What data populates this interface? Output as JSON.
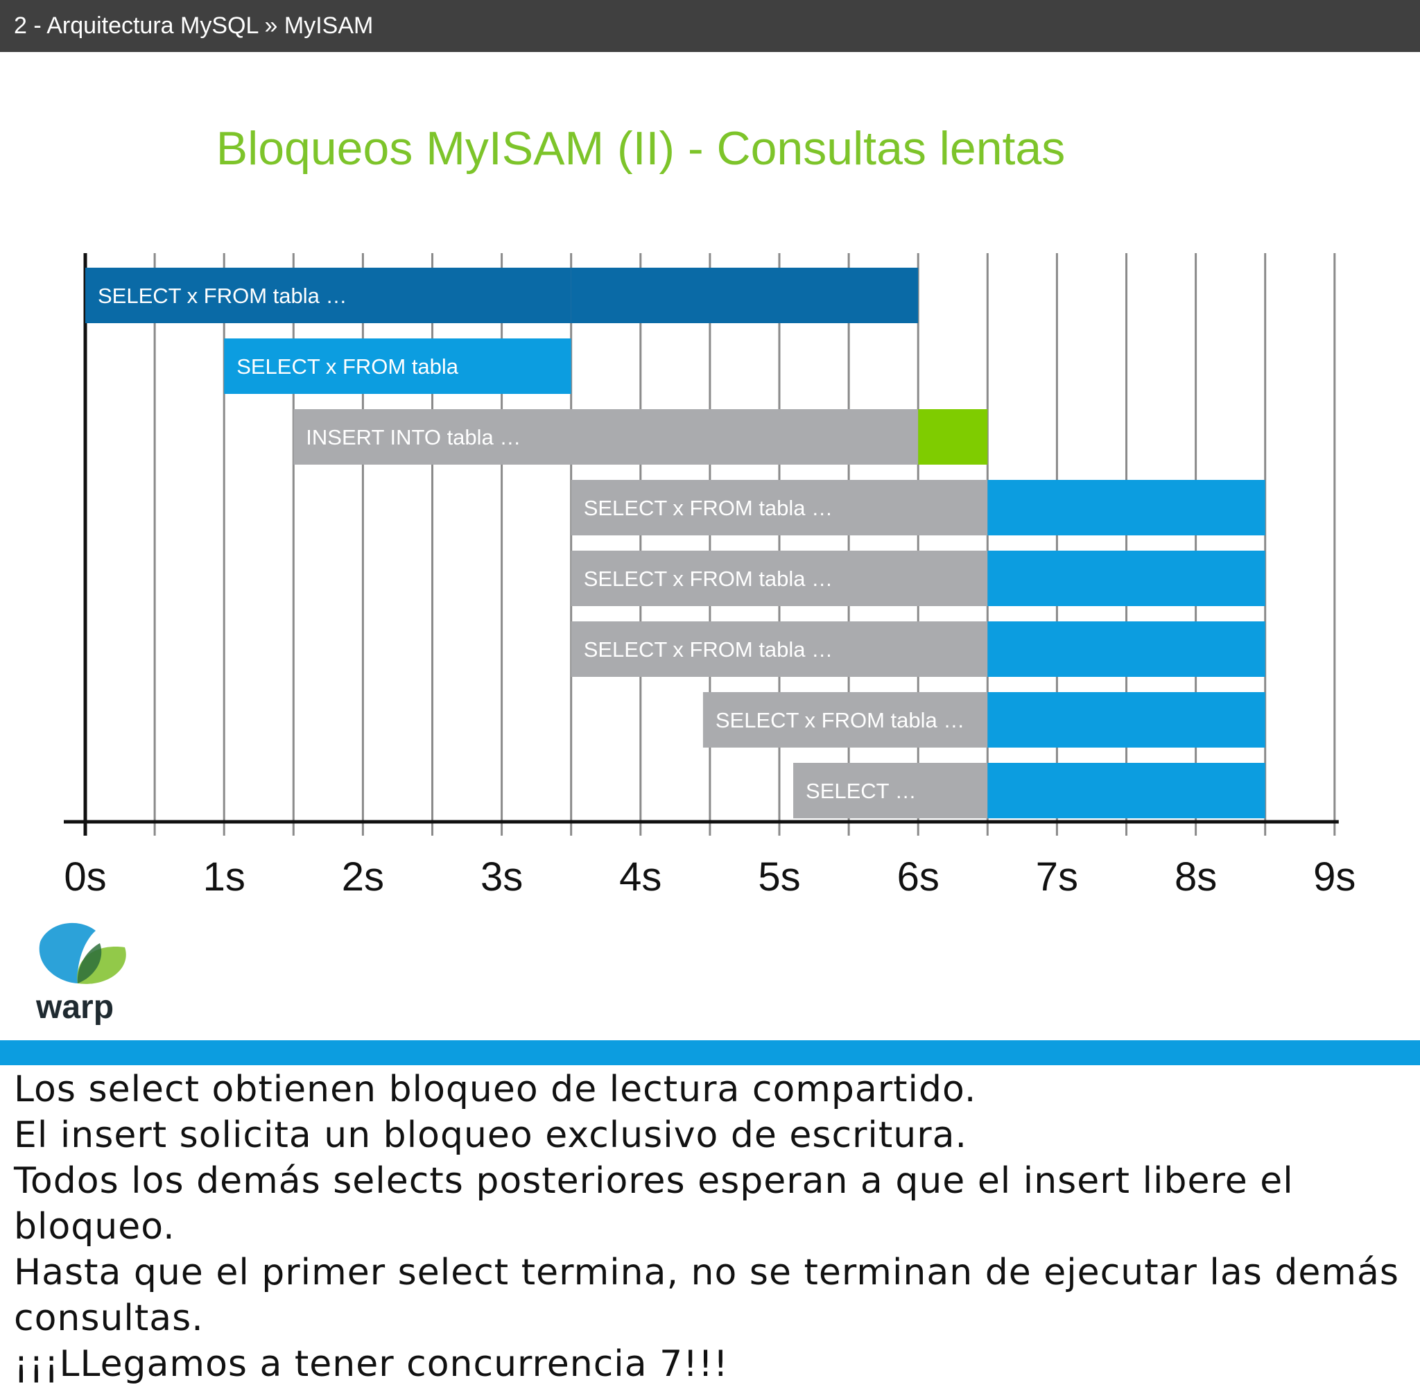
{
  "header": {
    "breadcrumb": "2 - Arquitectura MySQL » MyISAM"
  },
  "slide": {
    "title": "Bloqueos MyISAM (II) - Consultas lentas"
  },
  "logo": {
    "text": "warp"
  },
  "colors": {
    "dark_blue": "#0a6aa6",
    "light_blue": "#0c9de0",
    "gray": "#aaabae",
    "green": "#7fcc00",
    "divider": "#0c9de0",
    "title": "#7dc42a"
  },
  "chart_data": {
    "type": "gantt",
    "x_unit": "s",
    "xlim": [
      0,
      9
    ],
    "x_ticks": [
      "0s",
      "1s",
      "2s",
      "3s",
      "4s",
      "5s",
      "6s",
      "7s",
      "8s",
      "9s"
    ],
    "grid": true,
    "rows": [
      {
        "label": "SELECT x FROM tabla …",
        "segments": [
          {
            "start": 0,
            "end": 3.5,
            "state": "dark_blue"
          },
          {
            "start": 3.5,
            "end": 6,
            "state": "dark_blue"
          }
        ]
      },
      {
        "label": "SELECT x FROM tabla",
        "segments": [
          {
            "start": 1,
            "end": 3.5,
            "state": "light_blue"
          }
        ]
      },
      {
        "label": "INSERT INTO tabla …",
        "segments": [
          {
            "start": 1.5,
            "end": 6,
            "state": "gray"
          },
          {
            "start": 6,
            "end": 6.5,
            "state": "green"
          }
        ]
      },
      {
        "label": "SELECT x FROM tabla …",
        "segments": [
          {
            "start": 3.5,
            "end": 6.5,
            "state": "gray"
          },
          {
            "start": 6.5,
            "end": 8.5,
            "state": "light_blue"
          }
        ]
      },
      {
        "label": "SELECT x FROM tabla …",
        "segments": [
          {
            "start": 3.5,
            "end": 6.5,
            "state": "gray"
          },
          {
            "start": 6.5,
            "end": 8.5,
            "state": "light_blue"
          }
        ]
      },
      {
        "label": "SELECT x FROM tabla …",
        "segments": [
          {
            "start": 3.5,
            "end": 6.5,
            "state": "gray"
          },
          {
            "start": 6.5,
            "end": 8.5,
            "state": "light_blue"
          }
        ]
      },
      {
        "label": "SELECT x FROM tabla …",
        "segments": [
          {
            "start": 4.45,
            "end": 6.5,
            "state": "gray"
          },
          {
            "start": 6.5,
            "end": 8.5,
            "state": "light_blue"
          }
        ]
      },
      {
        "label": "SELECT …",
        "segments": [
          {
            "start": 5.1,
            "end": 6.5,
            "state": "gray"
          },
          {
            "start": 6.5,
            "end": 8.5,
            "state": "light_blue"
          }
        ]
      }
    ]
  },
  "notes": [
    "Los select obtienen bloqueo de lectura compartido.",
    "El insert solicita un bloqueo exclusivo de escritura.",
    "Todos los demás selects posteriores esperan a que el insert libere el bloqueo.",
    "Hasta que el primer select termina, no se terminan de ejecutar las demás consultas.",
    "¡¡¡LLegamos a tener concurrencia 7!!!"
  ]
}
